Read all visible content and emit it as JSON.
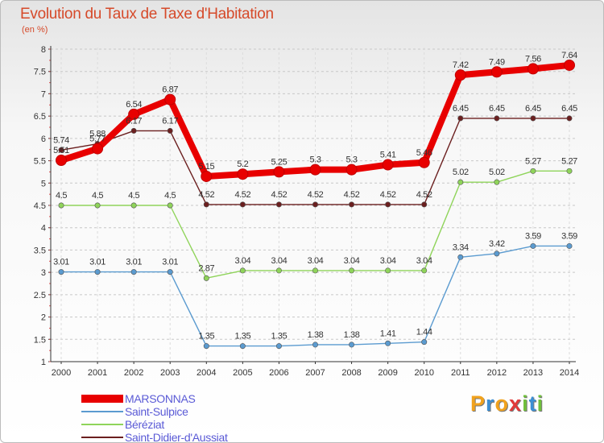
{
  "title": "Evolution du Taux de Taxe d'Habitation",
  "subtitle": "(en %)",
  "brand": {
    "text": "Proxiti",
    "letter_colors": [
      "#f1a21d",
      "#3c8fd4",
      "#f1a21d",
      "#e23a3a",
      "#6fbf3b",
      "#3c8fd4",
      "#6fbf3b"
    ]
  },
  "chart_data": {
    "type": "line",
    "x": [
      "2000",
      "2001",
      "2002",
      "2003",
      "2004",
      "2005",
      "2006",
      "2007",
      "2008",
      "2009",
      "2010",
      "2011",
      "2012",
      "2013",
      "2014"
    ],
    "ylim": [
      1,
      8
    ],
    "yticks": [
      "1",
      "1.5",
      "2",
      "2.5",
      "3",
      "3.5",
      "4",
      "4.5",
      "5",
      "5.5",
      "6",
      "6.5",
      "7",
      "7.5",
      "8"
    ],
    "grid": "horizontal dashed",
    "legend_position": "bottom-left",
    "series": [
      {
        "name": "MARSONNAS",
        "color": "#e80000",
        "label_color": "#333333",
        "values": [
          5.51,
          5.77,
          6.54,
          6.87,
          5.15,
          5.2,
          5.25,
          5.3,
          5.3,
          5.41,
          5.46,
          7.42,
          7.49,
          7.56,
          7.64
        ],
        "labels": [
          "5.51",
          "5.77",
          "6.54",
          "6.87",
          "5.15",
          "5.2",
          "5.25",
          "5.3",
          "5.3",
          "5.41",
          "5.46",
          "7.42",
          "7.49",
          "7.56",
          "7.64"
        ]
      },
      {
        "name": "Saint-Sulpice",
        "color": "#5b9bd0",
        "label_color": "#333333",
        "values": [
          3.01,
          3.01,
          3.01,
          3.01,
          1.35,
          1.35,
          1.35,
          1.38,
          1.38,
          1.41,
          1.44,
          3.34,
          3.42,
          3.59,
          3.59
        ],
        "labels": [
          "3.01",
          "3.01",
          "3.01",
          "3.01",
          "1.35",
          "1.35",
          "1.35",
          "1.38",
          "1.38",
          "1.41",
          "1.44",
          "3.34",
          "3.42",
          "3.59",
          "3.59"
        ]
      },
      {
        "name": "Béréziat",
        "color": "#8fd45a",
        "label_color": "#333333",
        "values": [
          4.5,
          4.5,
          4.5,
          4.5,
          2.87,
          3.04,
          3.04,
          3.04,
          3.04,
          3.04,
          3.04,
          5.02,
          5.02,
          5.27,
          5.27
        ],
        "labels": [
          "4.5",
          "4.5",
          "4.5",
          "4.5",
          "2.87",
          "3.04",
          "3.04",
          "3.04",
          "3.04",
          "3.04",
          "3.04",
          "5.02",
          "5.02",
          "5.27",
          "5.27"
        ]
      },
      {
        "name": "Saint-Didier-d'Aussiat",
        "color": "#6b1f1f",
        "label_color": "#333333",
        "values": [
          5.74,
          5.88,
          6.17,
          6.17,
          4.52,
          4.52,
          4.52,
          4.52,
          4.52,
          4.52,
          4.52,
          6.45,
          6.45,
          6.45,
          6.45
        ],
        "labels": [
          "5.74",
          "5.88",
          "6.17",
          "6.17",
          "4.52",
          "4.52",
          "4.52",
          "4.52",
          "4.52",
          "4.52",
          "4.52",
          "6.45",
          "6.45",
          "6.45",
          "6.45"
        ]
      }
    ]
  }
}
